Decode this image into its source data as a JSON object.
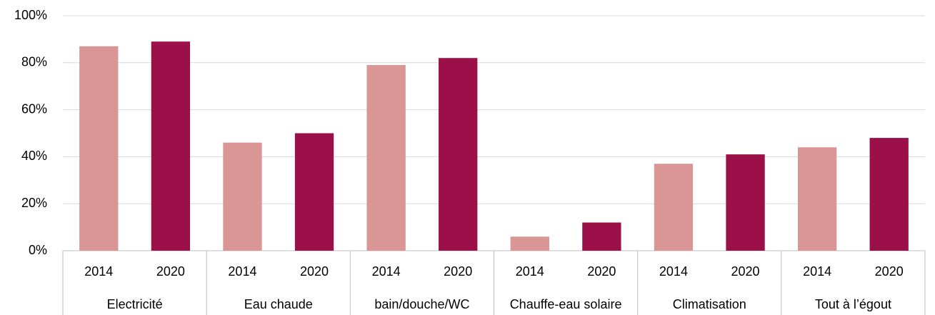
{
  "chart_data": {
    "type": "bar",
    "categories": [
      "Electricité",
      "Eau chaude",
      "bain/douche/WC",
      "Chauffe-eau solaire",
      "Climatisation",
      "Tout à l’égout"
    ],
    "series": [
      {
        "name": "2014",
        "color": "#d99694",
        "values": [
          87,
          46,
          79,
          6,
          37,
          44
        ]
      },
      {
        "name": "2020",
        "color": "#9b1049",
        "values": [
          89,
          50,
          82,
          12,
          41,
          48
        ]
      }
    ],
    "ylim": [
      0,
      100
    ],
    "yticks": [
      {
        "value": 0,
        "label": "0%"
      },
      {
        "value": 20,
        "label": "20%"
      },
      {
        "value": 40,
        "label": "40%"
      },
      {
        "value": 60,
        "label": "60%"
      },
      {
        "value": 80,
        "label": "80%"
      },
      {
        "value": 100,
        "label": "100%"
      }
    ],
    "grid": true
  }
}
